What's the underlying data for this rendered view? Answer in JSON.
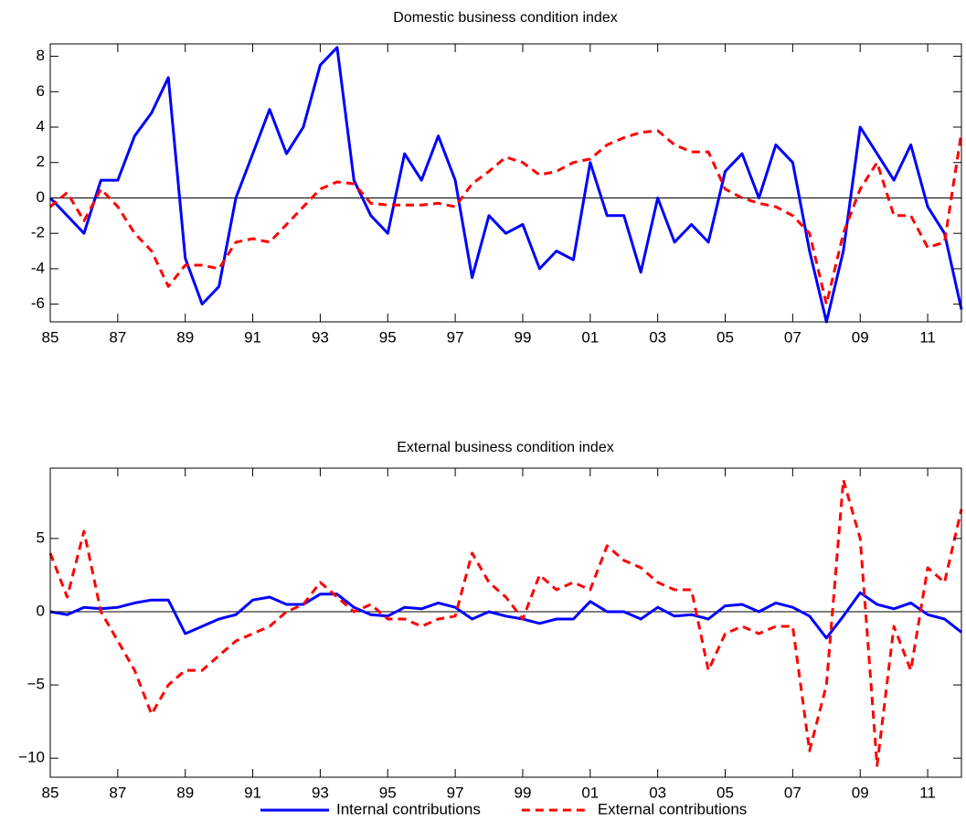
{
  "chart_data": [
    {
      "type": "line",
      "title": "Domestic business condition index",
      "x": [
        1985,
        1985.5,
        1986,
        1986.5,
        1987,
        1987.5,
        1988,
        1988.5,
        1989,
        1989.5,
        1990,
        1990.5,
        1991,
        1991.5,
        1992,
        1992.5,
        1993,
        1993.5,
        1994,
        1994.5,
        1995,
        1995.5,
        1996,
        1996.5,
        1997,
        1997.5,
        1998,
        1998.5,
        1999,
        1999.5,
        2000,
        2000.5,
        2001,
        2001.5,
        2002,
        2002.5,
        2003,
        2003.5,
        2004,
        2004.5,
        2005,
        2005.5,
        2006,
        2006.5,
        2007,
        2007.5,
        2008,
        2008.5,
        2009,
        2009.5,
        2010,
        2010.5,
        2011,
        2011.5,
        2012
      ],
      "series": [
        {
          "color": "#0000ff",
          "dash": false,
          "values": [
            0,
            -1,
            -2,
            1,
            1,
            3.5,
            4.8,
            6.8,
            -3.4,
            -6,
            -5,
            0,
            2.5,
            5,
            2.5,
            4,
            7.5,
            8.5,
            1,
            -1,
            -2,
            2.5,
            1,
            3.5,
            1,
            -4.5,
            -1,
            -2,
            -1.5,
            -4,
            -3,
            -3.5,
            2,
            -1,
            -1,
            -4.2,
            0,
            -2.5,
            -1.5,
            -2.5,
            1.5,
            2.5,
            0,
            3,
            2,
            -3,
            -7,
            -3,
            4,
            2.5,
            1,
            3,
            -0.5,
            -2,
            -6.3
          ]
        },
        {
          "color": "#ff0000",
          "dash": true,
          "values": [
            -0.5,
            0.3,
            -1.3,
            0.5,
            -0.5,
            -2,
            -3,
            -5,
            -3.8,
            -3.8,
            -4,
            -2.5,
            -2.3,
            -2.5,
            -1.5,
            -0.5,
            0.5,
            0.9,
            0.8,
            -0.3,
            -0.4,
            -0.4,
            -0.4,
            -0.3,
            -0.5,
            0.8,
            1.5,
            2.3,
            2,
            1.3,
            1.5,
            2,
            2.2,
            3,
            3.4,
            3.7,
            3.8,
            3,
            2.6,
            2.6,
            0.5,
            0,
            -0.3,
            -0.5,
            -1,
            -2,
            -6,
            -2,
            0.5,
            2,
            -1,
            -1,
            -2.8,
            -2.5,
            3.7
          ]
        }
      ],
      "xlim": [
        1985,
        2012
      ],
      "xticks": [
        {
          "value": 1985,
          "label": "85"
        },
        {
          "value": 1987,
          "label": "87"
        },
        {
          "value": 1989,
          "label": "89"
        },
        {
          "value": 1991,
          "label": "91"
        },
        {
          "value": 1993,
          "label": "93"
        },
        {
          "value": 1995,
          "label": "95"
        },
        {
          "value": 1997,
          "label": "97"
        },
        {
          "value": 1999,
          "label": "99"
        },
        {
          "value": 2001,
          "label": "01"
        },
        {
          "value": 2003,
          "label": "03"
        },
        {
          "value": 2005,
          "label": "05"
        },
        {
          "value": 2007,
          "label": "07"
        },
        {
          "value": 2009,
          "label": "09"
        },
        {
          "value": 2011,
          "label": "11"
        }
      ],
      "ylim": [
        -7,
        8.7
      ],
      "yticks": [
        -6,
        -4,
        -2,
        0,
        2,
        4,
        6,
        8
      ]
    },
    {
      "type": "line",
      "title": "External business condition index",
      "x": [
        1985,
        1985.5,
        1986,
        1986.5,
        1987,
        1987.5,
        1988,
        1988.5,
        1989,
        1989.5,
        1990,
        1990.5,
        1991,
        1991.5,
        1992,
        1992.5,
        1993,
        1993.5,
        1994,
        1994.5,
        1995,
        1995.5,
        1996,
        1996.5,
        1997,
        1997.5,
        1998,
        1998.5,
        1999,
        1999.5,
        2000,
        2000.5,
        2001,
        2001.5,
        2002,
        2002.5,
        2003,
        2003.5,
        2004,
        2004.5,
        2005,
        2005.5,
        2006,
        2006.5,
        2007,
        2007.5,
        2008,
        2008.5,
        2009,
        2009.5,
        2010,
        2010.5,
        2011,
        2011.5,
        2012
      ],
      "series": [
        {
          "name": "Internal contributions",
          "color": "#0000ff",
          "dash": false,
          "values": [
            0,
            -0.2,
            0.3,
            0.2,
            0.3,
            0.6,
            0.8,
            0.8,
            -1.5,
            -1,
            -0.5,
            -0.2,
            0.8,
            1,
            0.5,
            0.5,
            1.2,
            1.2,
            0.3,
            -0.2,
            -0.3,
            0.3,
            0.2,
            0.6,
            0.3,
            -0.5,
            0,
            -0.3,
            -0.5,
            -0.8,
            -0.5,
            -0.5,
            0.7,
            0,
            0,
            -0.5,
            0.3,
            -0.3,
            -0.2,
            -0.5,
            0.4,
            0.5,
            0,
            0.6,
            0.3,
            -0.3,
            -1.8,
            -0.3,
            1.3,
            0.5,
            0.2,
            0.6,
            -0.2,
            -0.5,
            -1.4
          ]
        },
        {
          "name": "External contributions",
          "color": "#ff0000",
          "dash": true,
          "values": [
            4,
            1,
            5.5,
            0,
            -2,
            -4,
            -7,
            -5,
            -4,
            -4,
            -3,
            -2,
            -1.5,
            -1,
            0,
            0.5,
            2,
            1,
            0,
            0.5,
            -0.5,
            -0.5,
            -1,
            -0.5,
            -0.3,
            4,
            2,
            1,
            -0.5,
            2.5,
            1.5,
            2,
            1.5,
            4.5,
            3.5,
            3,
            2,
            1.5,
            1.5,
            -4,
            -1.5,
            -1,
            -1.5,
            -1,
            -1,
            -9.5,
            -5,
            9,
            5,
            -10.5,
            -1,
            -4,
            3,
            2,
            7
          ]
        }
      ],
      "xlim": [
        1985,
        2012
      ],
      "xticks": [
        {
          "value": 1985,
          "label": "85"
        },
        {
          "value": 1987,
          "label": "87"
        },
        {
          "value": 1989,
          "label": "89"
        },
        {
          "value": 1991,
          "label": "91"
        },
        {
          "value": 1993,
          "label": "93"
        },
        {
          "value": 1995,
          "label": "95"
        },
        {
          "value": 1997,
          "label": "97"
        },
        {
          "value": 1999,
          "label": "99"
        },
        {
          "value": 2001,
          "label": "01"
        },
        {
          "value": 2003,
          "label": "03"
        },
        {
          "value": 2005,
          "label": "05"
        },
        {
          "value": 2007,
          "label": "07"
        },
        {
          "value": 2009,
          "label": "09"
        },
        {
          "value": 2011,
          "label": "11"
        }
      ],
      "ylim": [
        -11.3,
        9.8
      ],
      "yticks": [
        {
          "value": -10,
          "label": "−10"
        },
        {
          "value": -5,
          "label": "−5"
        },
        0,
        5
      ],
      "legend": "bottom"
    }
  ]
}
